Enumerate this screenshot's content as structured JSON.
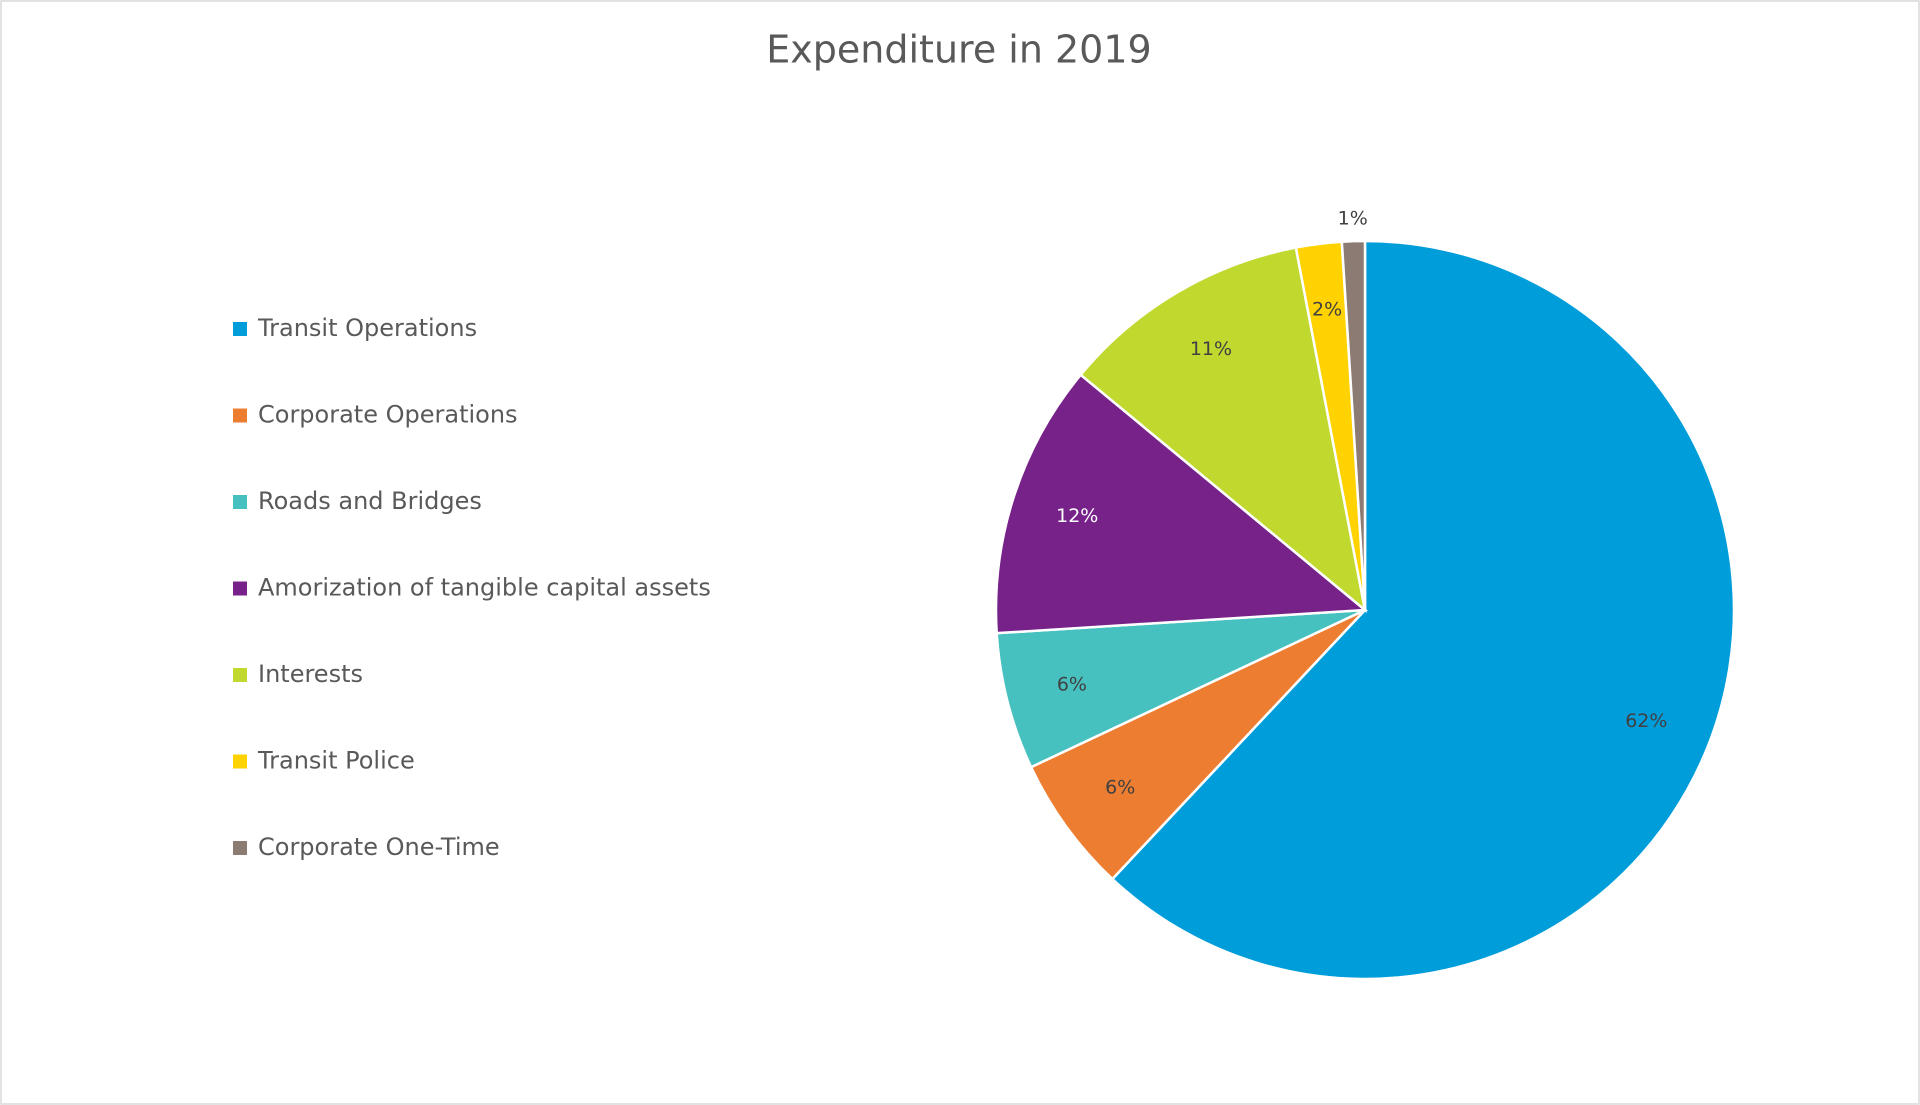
{
  "chart_data": {
    "type": "pie",
    "title": "Expenditure in 2019",
    "categories": [
      "Transit Operations",
      "Corporate Operations",
      "Roads and Bridges",
      "Amorization of tangible capital assets",
      "Interests",
      "Transit Police",
      "Corporate One-Time"
    ],
    "values": [
      62,
      6,
      6,
      12,
      11,
      2,
      1
    ],
    "value_labels": [
      "62%",
      "6%",
      "6%",
      "12%",
      "11%",
      "2%",
      "1%"
    ],
    "colors": [
      "#009ddb",
      "#ed7d31",
      "#47c1bf",
      "#772289",
      "#c1d82f",
      "#ffd200",
      "#8c7b73"
    ],
    "legend": "left"
  }
}
